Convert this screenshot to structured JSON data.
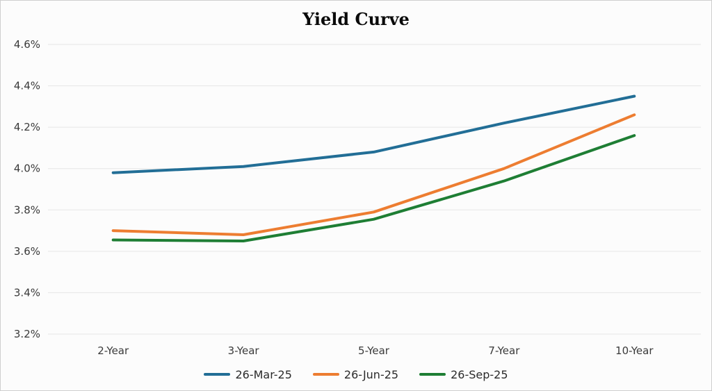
{
  "page": {
    "background": "#fcfcfc",
    "border_color": "#cfcfcf"
  },
  "chart_data": {
    "type": "line",
    "title": "Yield Curve",
    "categories": [
      "2-Year",
      "3-Year",
      "5-Year",
      "7-Year",
      "10-Year"
    ],
    "series": [
      {
        "name": "26-Mar-25",
        "color": "#226E96",
        "values": [
          3.98,
          4.01,
          4.08,
          4.22,
          4.35
        ]
      },
      {
        "name": "26-Jun-25",
        "color": "#ED7D31",
        "values": [
          3.7,
          3.68,
          3.79,
          4.0,
          4.26
        ]
      },
      {
        "name": "26-Sep-25",
        "color": "#1E7E34",
        "values": [
          3.655,
          3.65,
          3.755,
          3.94,
          4.16
        ]
      }
    ],
    "ylim": [
      3.2,
      4.6
    ],
    "y_tick_step": 0.2,
    "y_tick_labels_top_to_bottom": [
      "4.6%",
      "4.4%",
      "4.2%",
      "4.0%",
      "3.8%",
      "3.6%",
      "3.4%",
      "3.2%"
    ],
    "xlabel": "",
    "ylabel": "",
    "grid": true,
    "gridline_color": "#e6e6e6",
    "axis_text_color": "#3a3a3a",
    "legend_position": "bottom"
  }
}
